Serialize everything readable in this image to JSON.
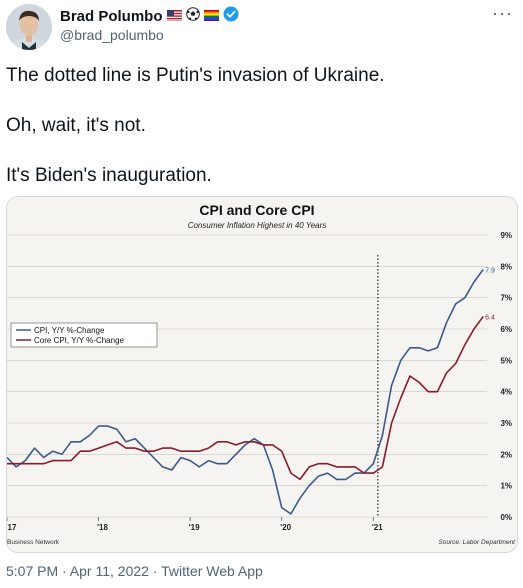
{
  "tweet": {
    "author": {
      "display_name": "Brad Polumbo",
      "handle": "@brad_polumbo",
      "badges": [
        "us-flag-emoji",
        "soccer-ball-emoji",
        "rainbow-flag-emoji",
        "verified-badge-icon"
      ]
    },
    "more_label": "···",
    "lines": [
      "The dotted line is Putin's invasion of Ukraine.",
      "Oh, wait, it's not.",
      "It's Biden's inauguration."
    ],
    "timestamp": "5:07 PM · Apr 11, 2022 · Twitter Web App"
  },
  "chart_data": {
    "type": "line",
    "title": "CPI and Core CPI",
    "subtitle": "Consumer Inflation Highest in 40 Years",
    "x_ticks": [
      "'17",
      "'18",
      "'19",
      "'20",
      "'21"
    ],
    "y_ticks": [
      "0%",
      "1%",
      "2%",
      "3%",
      "4%",
      "5%",
      "6%",
      "7%",
      "8%",
      "9%"
    ],
    "ylim": [
      0,
      9
    ],
    "series": [
      {
        "name": "CPI, Y/Y %-Change",
        "color": "#3b5a8a",
        "points": [
          [
            2017.0,
            1.9
          ],
          [
            2017.1,
            1.6
          ],
          [
            2017.2,
            1.8
          ],
          [
            2017.3,
            2.2
          ],
          [
            2017.4,
            1.9
          ],
          [
            2017.5,
            2.1
          ],
          [
            2017.6,
            2.0
          ],
          [
            2017.7,
            2.4
          ],
          [
            2017.8,
            2.4
          ],
          [
            2017.9,
            2.6
          ],
          [
            2018.0,
            2.9
          ],
          [
            2018.1,
            2.9
          ],
          [
            2018.2,
            2.8
          ],
          [
            2018.3,
            2.4
          ],
          [
            2018.4,
            2.5
          ],
          [
            2018.5,
            2.2
          ],
          [
            2018.6,
            1.9
          ],
          [
            2018.7,
            1.6
          ],
          [
            2018.8,
            1.5
          ],
          [
            2018.9,
            1.9
          ],
          [
            2019.0,
            1.8
          ],
          [
            2019.1,
            1.6
          ],
          [
            2019.2,
            1.8
          ],
          [
            2019.3,
            1.7
          ],
          [
            2019.4,
            1.7
          ],
          [
            2019.5,
            2.0
          ],
          [
            2019.6,
            2.3
          ],
          [
            2019.7,
            2.5
          ],
          [
            2019.8,
            2.3
          ],
          [
            2019.9,
            1.5
          ],
          [
            2020.0,
            0.3
          ],
          [
            2020.1,
            0.1
          ],
          [
            2020.2,
            0.6
          ],
          [
            2020.3,
            1.0
          ],
          [
            2020.4,
            1.3
          ],
          [
            2020.5,
            1.4
          ],
          [
            2020.6,
            1.2
          ],
          [
            2020.7,
            1.2
          ],
          [
            2020.8,
            1.4
          ],
          [
            2020.9,
            1.4
          ],
          [
            2021.0,
            1.7
          ],
          [
            2021.1,
            2.6
          ],
          [
            2021.2,
            4.2
          ],
          [
            2021.3,
            5.0
          ],
          [
            2021.4,
            5.4
          ],
          [
            2021.5,
            5.4
          ],
          [
            2021.6,
            5.3
          ],
          [
            2021.7,
            5.4
          ],
          [
            2021.8,
            6.2
          ],
          [
            2021.9,
            6.8
          ],
          [
            2022.0,
            7.0
          ],
          [
            2022.1,
            7.5
          ],
          [
            2022.2,
            7.9
          ]
        ]
      },
      {
        "name": "Core CPI, Y/Y %-Change",
        "color": "#8b1a2b",
        "points": [
          [
            2017.0,
            1.7
          ],
          [
            2017.1,
            1.7
          ],
          [
            2017.2,
            1.7
          ],
          [
            2017.3,
            1.7
          ],
          [
            2017.4,
            1.7
          ],
          [
            2017.5,
            1.8
          ],
          [
            2017.6,
            1.8
          ],
          [
            2017.7,
            1.8
          ],
          [
            2017.8,
            2.1
          ],
          [
            2017.9,
            2.1
          ],
          [
            2018.0,
            2.2
          ],
          [
            2018.1,
            2.3
          ],
          [
            2018.2,
            2.4
          ],
          [
            2018.3,
            2.2
          ],
          [
            2018.4,
            2.2
          ],
          [
            2018.5,
            2.1
          ],
          [
            2018.6,
            2.1
          ],
          [
            2018.7,
            2.2
          ],
          [
            2018.8,
            2.2
          ],
          [
            2018.9,
            2.1
          ],
          [
            2019.0,
            2.1
          ],
          [
            2019.1,
            2.1
          ],
          [
            2019.2,
            2.2
          ],
          [
            2019.3,
            2.4
          ],
          [
            2019.4,
            2.4
          ],
          [
            2019.5,
            2.3
          ],
          [
            2019.6,
            2.4
          ],
          [
            2019.7,
            2.4
          ],
          [
            2019.8,
            2.3
          ],
          [
            2019.9,
            2.3
          ],
          [
            2020.0,
            2.1
          ],
          [
            2020.1,
            1.4
          ],
          [
            2020.2,
            1.2
          ],
          [
            2020.3,
            1.6
          ],
          [
            2020.4,
            1.7
          ],
          [
            2020.5,
            1.7
          ],
          [
            2020.6,
            1.6
          ],
          [
            2020.7,
            1.6
          ],
          [
            2020.8,
            1.6
          ],
          [
            2020.9,
            1.4
          ],
          [
            2021.0,
            1.4
          ],
          [
            2021.1,
            1.6
          ],
          [
            2021.2,
            3.0
          ],
          [
            2021.3,
            3.8
          ],
          [
            2021.4,
            4.5
          ],
          [
            2021.5,
            4.3
          ],
          [
            2021.6,
            4.0
          ],
          [
            2021.7,
            4.0
          ],
          [
            2021.8,
            4.6
          ],
          [
            2021.9,
            4.9
          ],
          [
            2022.0,
            5.5
          ],
          [
            2022.1,
            6.0
          ],
          [
            2022.2,
            6.4
          ]
        ]
      }
    ],
    "end_labels": [
      "7.9",
      "6.4"
    ],
    "annotation": {
      "x": 2021.05,
      "style": "dotted"
    },
    "source": "Source: Labor Department",
    "credit": "Business Network"
  }
}
